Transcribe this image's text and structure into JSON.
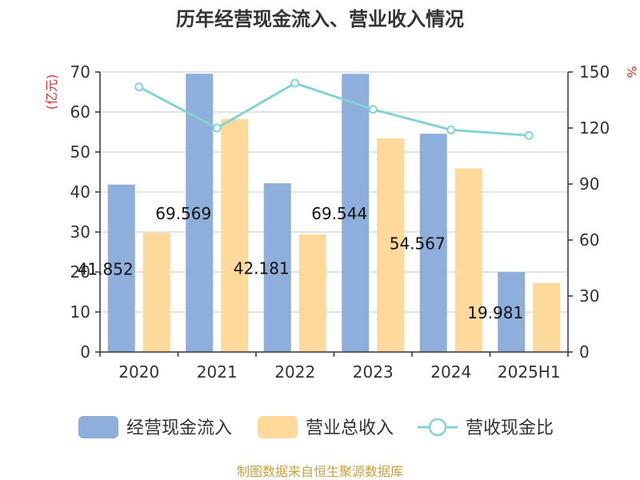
{
  "title": "历年经营现金流入、营业收入情况",
  "source": "制图数据来自恒生聚源数据库",
  "colors": {
    "cash_inflow": "#8eaedb",
    "revenue": "#fdd99b",
    "ratio": "#84d2d6",
    "unit_red": "#e03030",
    "source": "#c8a040"
  },
  "chart_data": {
    "type": "bar",
    "title": "历年经营现金流入、营业收入情况",
    "categories": [
      "2020",
      "2021",
      "2022",
      "2023",
      "2024",
      "2025H1"
    ],
    "series": [
      {
        "name": "经营现金流入",
        "type": "bar",
        "axis": "left",
        "values": [
          41.852,
          69.569,
          42.181,
          69.544,
          54.567,
          19.981
        ],
        "labels": [
          "41.852",
          "69.569",
          "42.181",
          "69.544",
          "54.567",
          "19.981"
        ]
      },
      {
        "name": "营业总收入",
        "type": "bar",
        "axis": "left",
        "values": [
          29.8,
          58.3,
          29.4,
          53.4,
          45.9,
          17.2
        ]
      },
      {
        "name": "营收现金比",
        "type": "line",
        "axis": "right",
        "values": [
          142,
          120,
          144,
          130,
          119,
          116
        ]
      }
    ],
    "left_axis": {
      "unit_label": "(亿元)",
      "ylim": [
        0,
        70
      ],
      "ticks": [
        "0",
        "10",
        "20",
        "30",
        "40",
        "50",
        "60",
        "70"
      ]
    },
    "right_axis": {
      "unit_label": "%",
      "ylim": [
        0,
        150
      ],
      "ticks": [
        "0",
        "30",
        "60",
        "90",
        "120",
        "150"
      ]
    },
    "grid": true,
    "legend_position": "bottom"
  }
}
